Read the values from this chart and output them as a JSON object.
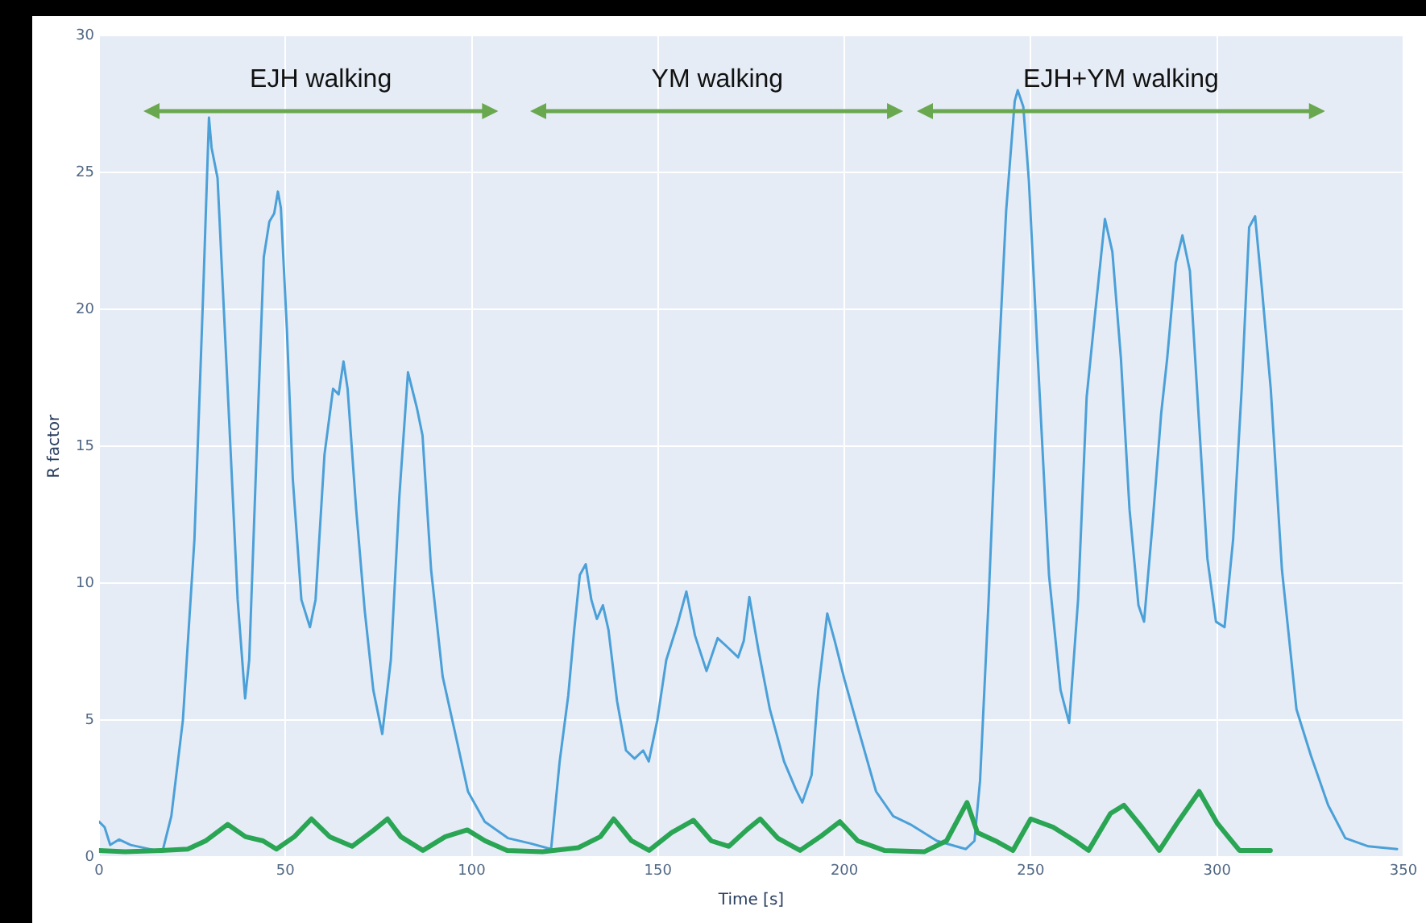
{
  "chart_data": {
    "type": "line",
    "xlabel": "Time [s]",
    "ylabel": "R factor",
    "xlim": [
      0,
      350
    ],
    "xticks": [
      0,
      50,
      100,
      150,
      200,
      250,
      300,
      350
    ],
    "ylim": [
      0,
      30
    ],
    "yticks": [
      0,
      5,
      10,
      15,
      20,
      25,
      30
    ],
    "grid": true,
    "legend": false,
    "marker": "none",
    "annotations": [
      "EJH walking",
      "YM walking",
      "EJH+YM walking"
    ],
    "series": [
      {
        "color": "#4ba0d8",
        "x": [
          0,
          1.5,
          3,
          5.4,
          8.5,
          17,
          19.4,
          22.5,
          25.6,
          27.9,
          29.5,
          30.2,
          31.8,
          34.9,
          37.2,
          39.2,
          40.3,
          42.6,
          44.2,
          45.7,
          47,
          48,
          48.8,
          50.4,
          52,
          54.3,
          56.6,
          58.1,
          60.5,
          62.8,
          64.3,
          65.6,
          66.7,
          69,
          71.3,
          73.6,
          76,
          78.3,
          80.6,
          82.9,
          85.3,
          86.8,
          89.1,
          92.2,
          96.1,
          99,
          103.5,
          109.7,
          115.9,
          121.3,
          123.6,
          125.9,
          127.5,
          129,
          130.6,
          132.1,
          133.6,
          135.2,
          136.7,
          139,
          141.4,
          143.7,
          146,
          147.5,
          149.8,
          152.2,
          155.2,
          157.6,
          159.9,
          163,
          166,
          168.4,
          171.5,
          173,
          174.5,
          176.9,
          180,
          183.8,
          186.9,
          188.7,
          191.2,
          193,
          195.4,
          197.4,
          200,
          203.9,
          208.5,
          213.1,
          217.7,
          224.8,
          232.6,
          234.9,
          236.4,
          238.7,
          241,
          243.4,
          245.7,
          246.5,
          248,
          249.5,
          251.9,
          254.9,
          258,
          260.3,
          262.7,
          265,
          267.3,
          269.9,
          271.9,
          274.2,
          276.5,
          278.9,
          280.4,
          282.7,
          285,
          286.6,
          288.9,
          290.7,
          292.7,
          295.1,
          297.4,
          299.7,
          302,
          304.3,
          306.6,
          308.6,
          310.2,
          312,
          314.4,
          317.4,
          321.3,
          325.2,
          329.8,
          334.4,
          340.6,
          348.3
        ],
        "values": [
          1.3,
          1.1,
          0.45,
          0.65,
          0.45,
          0.2,
          1.5,
          5,
          11.6,
          20.4,
          27,
          25.9,
          24.8,
          16,
          9.4,
          5.8,
          7.2,
          16,
          21.9,
          23.2,
          23.5,
          24.3,
          23.7,
          19.3,
          13.8,
          9.4,
          8.4,
          9.4,
          14.7,
          17.1,
          16.9,
          18.1,
          17.1,
          12.7,
          9,
          6.1,
          4.5,
          7.2,
          13.2,
          17.7,
          16.4,
          15.4,
          10.5,
          6.6,
          4.2,
          2.4,
          1.3,
          0.7,
          0.5,
          0.3,
          3.5,
          5.9,
          8.3,
          10.3,
          10.7,
          9.4,
          8.7,
          9.2,
          8.3,
          5.7,
          3.9,
          3.6,
          3.9,
          3.5,
          5,
          7.2,
          8.5,
          9.7,
          8.1,
          6.8,
          8,
          7.7,
          7.3,
          7.9,
          9.5,
          7.6,
          5.4,
          3.5,
          2.5,
          2,
          3,
          6.1,
          8.9,
          7.9,
          6.5,
          4.6,
          2.4,
          1.5,
          1.2,
          0.6,
          0.3,
          0.6,
          2.8,
          9.4,
          17,
          23.6,
          27.6,
          28,
          27.4,
          24.7,
          18.2,
          10.3,
          6.1,
          4.9,
          9.4,
          16.8,
          19.9,
          23.3,
          22.1,
          18.2,
          12.7,
          9.2,
          8.6,
          12.2,
          16.2,
          18.2,
          21.7,
          22.7,
          21.4,
          16,
          10.9,
          8.6,
          8.4,
          11.6,
          17.1,
          23,
          23.4,
          20.8,
          17.1,
          10.5,
          5.4,
          3.7,
          1.9,
          0.7,
          0.4,
          0.3
        ]
      },
      {
        "color": "#2aa554",
        "x": [
          0,
          7,
          16.7,
          23.8,
          28.6,
          34.5,
          39.3,
          44,
          47.6,
          52.4,
          57,
          61.9,
          67.9,
          73.8,
          77.4,
          81,
          86.9,
          92.9,
          98.8,
          103.6,
          109.5,
          119,
          128.6,
          134.5,
          138.1,
          142.9,
          147.6,
          153.6,
          159.5,
          164.3,
          169,
          173.8,
          177.4,
          182.1,
          188.1,
          194,
          198.8,
          203.6,
          210.7,
          221.4,
          227.4,
          232.9,
          235.7,
          240.5,
          245.2,
          250,
          256,
          261.9,
          265.5,
          271.4,
          275,
          279.8,
          284.5,
          289.3,
          295.2,
          300,
          306,
          314.3
        ],
        "values": [
          0.25,
          0.2,
          0.25,
          0.3,
          0.6,
          1.2,
          0.75,
          0.6,
          0.3,
          0.75,
          1.4,
          0.75,
          0.4,
          1,
          1.4,
          0.75,
          0.25,
          0.75,
          1,
          0.6,
          0.25,
          0.2,
          0.35,
          0.75,
          1.4,
          0.6,
          0.25,
          0.9,
          1.35,
          0.6,
          0.4,
          1,
          1.4,
          0.7,
          0.25,
          0.8,
          1.3,
          0.6,
          0.25,
          0.2,
          0.6,
          2,
          0.9,
          0.6,
          0.25,
          1.4,
          1.1,
          0.6,
          0.25,
          1.6,
          1.9,
          1.1,
          0.25,
          1.25,
          2.4,
          1.25,
          0.25,
          0.25
        ]
      }
    ]
  }
}
